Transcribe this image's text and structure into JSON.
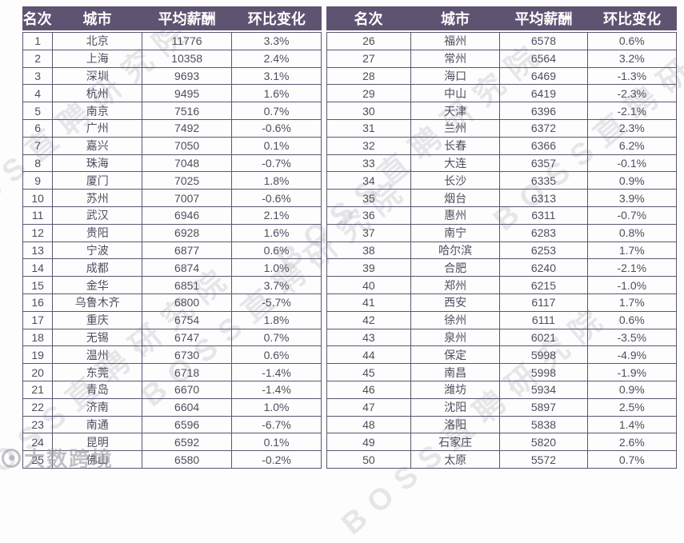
{
  "chart_data": {
    "type": "table",
    "columns": [
      "名次",
      "城市",
      "平均薪酬",
      "环比变化"
    ],
    "rows": [
      [
        1,
        "北京",
        11776,
        "3.3%"
      ],
      [
        2,
        "上海",
        10358,
        "2.4%"
      ],
      [
        3,
        "深圳",
        9693,
        "3.1%"
      ],
      [
        4,
        "杭州",
        9495,
        "1.6%"
      ],
      [
        5,
        "南京",
        7516,
        "0.7%"
      ],
      [
        6,
        "广州",
        7492,
        "-0.6%"
      ],
      [
        7,
        "嘉兴",
        7050,
        "0.1%"
      ],
      [
        8,
        "珠海",
        7048,
        "-0.7%"
      ],
      [
        9,
        "厦门",
        7025,
        "1.8%"
      ],
      [
        10,
        "苏州",
        7007,
        "-0.6%"
      ],
      [
        11,
        "武汉",
        6946,
        "2.1%"
      ],
      [
        12,
        "贵阳",
        6928,
        "1.6%"
      ],
      [
        13,
        "宁波",
        6877,
        "0.6%"
      ],
      [
        14,
        "成都",
        6874,
        "1.0%"
      ],
      [
        15,
        "金华",
        6851,
        "3.7%"
      ],
      [
        16,
        "乌鲁木齐",
        6800,
        "-5.7%"
      ],
      [
        17,
        "重庆",
        6754,
        "1.8%"
      ],
      [
        18,
        "无锡",
        6747,
        "0.7%"
      ],
      [
        19,
        "温州",
        6730,
        "0.6%"
      ],
      [
        20,
        "东莞",
        6718,
        "-1.4%"
      ],
      [
        21,
        "青岛",
        6670,
        "-1.4%"
      ],
      [
        22,
        "济南",
        6604,
        "1.0%"
      ],
      [
        23,
        "南通",
        6596,
        "-6.7%"
      ],
      [
        24,
        "昆明",
        6592,
        "0.1%"
      ],
      [
        25,
        "佛山",
        6580,
        "-0.2%"
      ],
      [
        26,
        "福州",
        6578,
        "0.6%"
      ],
      [
        27,
        "常州",
        6564,
        "3.2%"
      ],
      [
        28,
        "海口",
        6469,
        "-1.3%"
      ],
      [
        29,
        "中山",
        6419,
        "-2.3%"
      ],
      [
        30,
        "天津",
        6396,
        "-2.1%"
      ],
      [
        31,
        "兰州",
        6372,
        "2.3%"
      ],
      [
        32,
        "长春",
        6366,
        "6.2%"
      ],
      [
        33,
        "大连",
        6357,
        "-0.1%"
      ],
      [
        34,
        "长沙",
        6335,
        "0.9%"
      ],
      [
        35,
        "烟台",
        6313,
        "3.9%"
      ],
      [
        36,
        "惠州",
        6311,
        "-0.7%"
      ],
      [
        37,
        "南宁",
        6283,
        "0.8%"
      ],
      [
        38,
        "哈尔滨",
        6253,
        "1.7%"
      ],
      [
        39,
        "合肥",
        6240,
        "-2.1%"
      ],
      [
        40,
        "郑州",
        6215,
        "-1.0%"
      ],
      [
        41,
        "西安",
        6117,
        "1.7%"
      ],
      [
        42,
        "徐州",
        6111,
        "0.6%"
      ],
      [
        43,
        "泉州",
        6021,
        "-3.5%"
      ],
      [
        44,
        "保定",
        5998,
        "-4.9%"
      ],
      [
        45,
        "南昌",
        5998,
        "-1.9%"
      ],
      [
        46,
        "潍坊",
        5934,
        "0.9%"
      ],
      [
        47,
        "沈阳",
        5897,
        "2.5%"
      ],
      [
        48,
        "洛阳",
        5838,
        "1.4%"
      ],
      [
        49,
        "石家庄",
        5820,
        "2.6%"
      ],
      [
        50,
        "太原",
        5572,
        "0.7%"
      ]
    ]
  },
  "watermarks": {
    "brand": "BOSS直聘研究院",
    "corner": "大数跨境"
  },
  "colors": {
    "header_bg": "#5e5472",
    "grid_border": "#5e5472",
    "cell_text": "#514d5e",
    "header_text": "#ffffff",
    "watermark_gray": "#b4b2bd"
  }
}
